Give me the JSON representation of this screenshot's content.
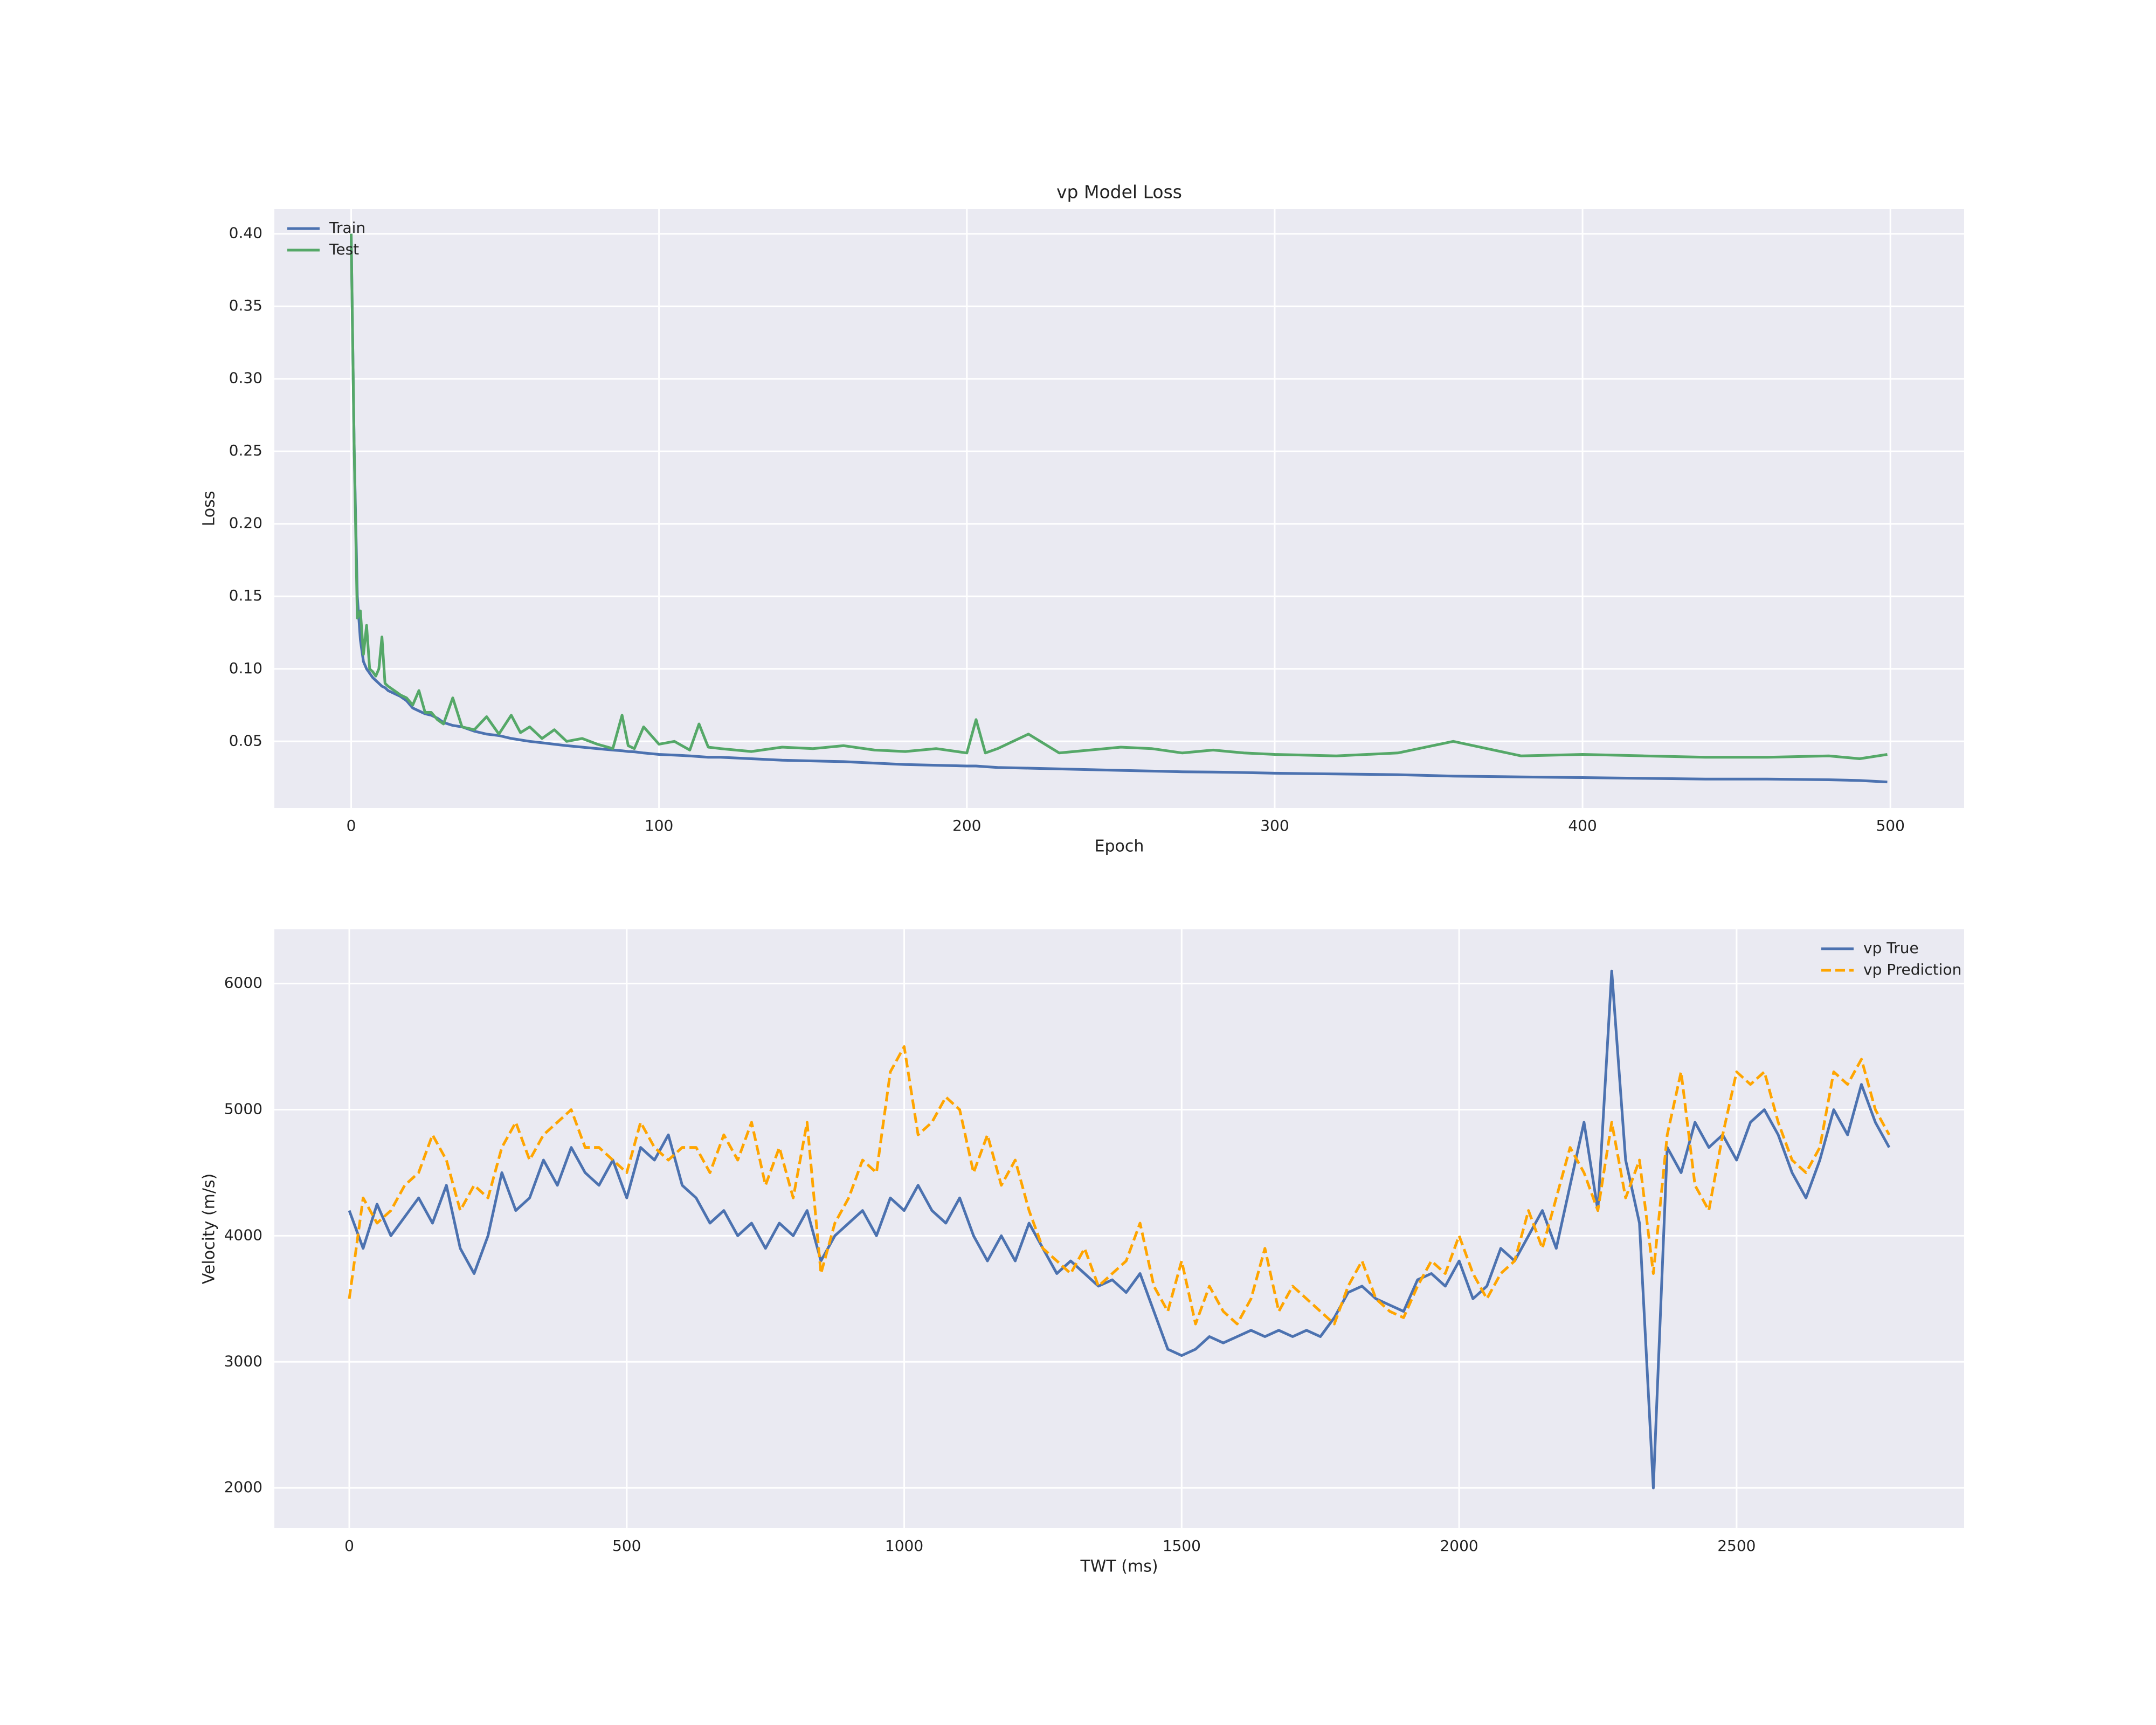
{
  "chart_data": [
    {
      "type": "line",
      "title": "vp Model Loss",
      "x_label": "Epoch",
      "y_label": "Loss",
      "grid": true,
      "legend": "upper left",
      "xlim": [
        -24.95,
        523.95
      ],
      "ylim": [
        0.004,
        0.417
      ],
      "xticks": [
        0,
        100,
        200,
        300,
        400,
        500
      ],
      "yticks": [
        0.05,
        {
          "value": 0.1,
          "label": "0.10"
        },
        0.15,
        {
          "value": 0.2,
          "label": "0.20"
        },
        0.25,
        {
          "value": 0.3,
          "label": "0.30"
        },
        0.35,
        {
          "value": 0.4,
          "label": "0.40"
        }
      ],
      "x": [
        0,
        1,
        2,
        3,
        4,
        5,
        6,
        7,
        8,
        9,
        10,
        11,
        12,
        14,
        16,
        18,
        20,
        22,
        24,
        26,
        28,
        30,
        33,
        36,
        40,
        44,
        48,
        52,
        55,
        58,
        62,
        66,
        70,
        75,
        80,
        85,
        88,
        90,
        92,
        95,
        100,
        105,
        110,
        113,
        116,
        120,
        130,
        140,
        150,
        160,
        170,
        180,
        190,
        200,
        203,
        206,
        210,
        220,
        230,
        240,
        250,
        260,
        270,
        280,
        290,
        300,
        320,
        340,
        358,
        380,
        400,
        420,
        440,
        460,
        480,
        490,
        499
      ],
      "series": [
        {
          "name": "Train",
          "color": "#4c72b0",
          "linestyle": "solid",
          "values": [
            0.4,
            0.25,
            0.15,
            0.12,
            0.105,
            0.1,
            0.097,
            0.094,
            0.092,
            0.09,
            0.088,
            0.087,
            0.085,
            0.083,
            0.081,
            0.078,
            0.073,
            0.071,
            0.069,
            0.068,
            0.066,
            0.063,
            0.061,
            0.06,
            0.057,
            0.055,
            0.054,
            0.052,
            0.051,
            0.05,
            0.049,
            0.048,
            0.047,
            0.046,
            0.045,
            0.044,
            0.0435,
            0.043,
            0.0428,
            0.042,
            0.041,
            0.0405,
            0.04,
            0.0395,
            0.039,
            0.039,
            0.038,
            0.037,
            0.0365,
            0.036,
            0.035,
            0.034,
            0.0335,
            0.033,
            0.033,
            0.0325,
            0.032,
            0.0315,
            0.031,
            0.0305,
            0.03,
            0.0295,
            0.029,
            0.0288,
            0.0285,
            0.028,
            0.0275,
            0.027,
            0.026,
            0.0255,
            0.025,
            0.0245,
            0.024,
            0.024,
            0.0235,
            0.023,
            0.022
          ]
        },
        {
          "name": "Test",
          "color": "#55a868",
          "linestyle": "solid",
          "values": [
            0.4,
            0.25,
            0.135,
            0.14,
            0.11,
            0.13,
            0.1,
            0.098,
            0.095,
            0.1,
            0.122,
            0.09,
            0.088,
            0.085,
            0.082,
            0.08,
            0.075,
            0.085,
            0.07,
            0.07,
            0.065,
            0.062,
            0.08,
            0.06,
            0.058,
            0.067,
            0.055,
            0.068,
            0.056,
            0.06,
            0.052,
            0.058,
            0.05,
            0.052,
            0.048,
            0.045,
            0.068,
            0.047,
            0.045,
            0.06,
            0.048,
            0.05,
            0.044,
            0.062,
            0.046,
            0.045,
            0.043,
            0.046,
            0.045,
            0.047,
            0.044,
            0.043,
            0.045,
            0.042,
            0.065,
            0.042,
            0.045,
            0.055,
            0.042,
            0.044,
            0.046,
            0.045,
            0.042,
            0.044,
            0.042,
            0.041,
            0.04,
            0.042,
            0.05,
            0.04,
            0.041,
            0.04,
            0.039,
            0.039,
            0.04,
            0.038,
            0.041
          ]
        }
      ]
    },
    {
      "type": "line",
      "x_label": "TWT (ms)",
      "y_label": "Velocity (m/s)",
      "grid": true,
      "legend": "upper right",
      "xlim": [
        -135,
        2910
      ],
      "ylim": [
        1680,
        6430
      ],
      "xticks": [
        0,
        500,
        1000,
        1500,
        2000,
        2500
      ],
      "yticks": [
        2000,
        3000,
        4000,
        5000,
        6000
      ],
      "x": [
        0,
        25,
        50,
        75,
        100,
        125,
        150,
        175,
        200,
        225,
        250,
        275,
        300,
        325,
        350,
        375,
        400,
        425,
        450,
        475,
        500,
        525,
        550,
        575,
        600,
        625,
        650,
        675,
        700,
        725,
        750,
        775,
        800,
        825,
        850,
        875,
        900,
        925,
        950,
        975,
        1000,
        1025,
        1050,
        1075,
        1100,
        1125,
        1150,
        1175,
        1200,
        1225,
        1250,
        1275,
        1300,
        1325,
        1350,
        1375,
        1400,
        1425,
        1450,
        1475,
        1500,
        1525,
        1550,
        1575,
        1600,
        1625,
        1650,
        1675,
        1700,
        1725,
        1750,
        1775,
        1800,
        1825,
        1850,
        1875,
        1900,
        1925,
        1950,
        1975,
        2000,
        2025,
        2050,
        2075,
        2100,
        2125,
        2150,
        2175,
        2200,
        2225,
        2250,
        2275,
        2300,
        2325,
        2350,
        2375,
        2400,
        2425,
        2450,
        2475,
        2500,
        2525,
        2550,
        2575,
        2600,
        2625,
        2650,
        2675,
        2700,
        2725,
        2750,
        2775
      ],
      "series": [
        {
          "name": "vp True",
          "color": "#4c72b0",
          "linestyle": "solid",
          "values": [
            4200,
            3900,
            4250,
            4000,
            4150,
            4300,
            4100,
            4400,
            3900,
            3700,
            4000,
            4500,
            4200,
            4300,
            4600,
            4400,
            4700,
            4500,
            4400,
            4600,
            4300,
            4700,
            4600,
            4800,
            4400,
            4300,
            4100,
            4200,
            4000,
            4100,
            3900,
            4100,
            4000,
            4200,
            3800,
            4000,
            4100,
            4200,
            4000,
            4300,
            4200,
            4400,
            4200,
            4100,
            4300,
            4000,
            3800,
            4000,
            3800,
            4100,
            3900,
            3700,
            3800,
            3700,
            3600,
            3650,
            3550,
            3700,
            3400,
            3100,
            3050,
            3100,
            3200,
            3150,
            3200,
            3250,
            3200,
            3250,
            3200,
            3250,
            3200,
            3350,
            3550,
            3600,
            3500,
            3450,
            3400,
            3650,
            3700,
            3600,
            3800,
            3500,
            3600,
            3900,
            3800,
            4000,
            4200,
            3900,
            4400,
            4900,
            4200,
            6100,
            4600,
            4100,
            2000,
            4700,
            4500,
            4900,
            4700,
            4800,
            4600,
            4900,
            5000,
            4800,
            4500,
            4300,
            4600,
            5000,
            4800,
            5200,
            4900,
            4700
          ]
        },
        {
          "name": "vp Prediction",
          "color": "#ffa500",
          "linestyle": "dashed",
          "values": [
            3500,
            4300,
            4100,
            4200,
            4400,
            4500,
            4800,
            4600,
            4200,
            4400,
            4300,
            4700,
            4900,
            4600,
            4800,
            4900,
            5000,
            4700,
            4700,
            4600,
            4500,
            4900,
            4700,
            4600,
            4700,
            4700,
            4500,
            4800,
            4600,
            4900,
            4400,
            4700,
            4300,
            4900,
            3700,
            4100,
            4300,
            4600,
            4500,
            5300,
            5500,
            4800,
            4900,
            5100,
            5000,
            4500,
            4800,
            4400,
            4600,
            4200,
            3900,
            3800,
            3700,
            3900,
            3600,
            3700,
            3800,
            4100,
            3600,
            3400,
            3800,
            3300,
            3600,
            3400,
            3300,
            3500,
            3900,
            3400,
            3600,
            3500,
            3400,
            3300,
            3600,
            3800,
            3500,
            3400,
            3350,
            3600,
            3800,
            3700,
            4000,
            3700,
            3500,
            3700,
            3800,
            4200,
            3900,
            4300,
            4700,
            4500,
            4200,
            4900,
            4300,
            4600,
            3700,
            4800,
            5300,
            4400,
            4200,
            4800,
            5300,
            5200,
            5300,
            4900,
            4600,
            4500,
            4700,
            5300,
            5200,
            5400,
            5000,
            4800
          ]
        }
      ]
    }
  ]
}
